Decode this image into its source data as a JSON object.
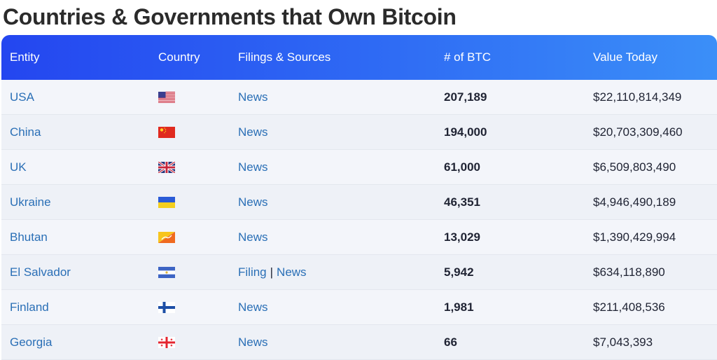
{
  "title": "Countries & Governments that Own Bitcoin",
  "table": {
    "headers": {
      "entity": "Entity",
      "country": "Country",
      "sources": "Filings & Sources",
      "btc": "# of BTC",
      "value": "Value Today"
    },
    "rows": [
      {
        "entity": "USA",
        "flag": "usa-flag-icon",
        "sources": [
          "News"
        ],
        "btc": "207,189",
        "value": "$22,110,814,349"
      },
      {
        "entity": "China",
        "flag": "china-flag-icon",
        "sources": [
          "News"
        ],
        "btc": "194,000",
        "value": "$20,703,309,460"
      },
      {
        "entity": "UK",
        "flag": "uk-flag-icon",
        "sources": [
          "News"
        ],
        "btc": "61,000",
        "value": "$6,509,803,490"
      },
      {
        "entity": "Ukraine",
        "flag": "ukraine-flag-icon",
        "sources": [
          "News"
        ],
        "btc": "46,351",
        "value": "$4,946,490,189"
      },
      {
        "entity": "Bhutan",
        "flag": "bhutan-flag-icon",
        "sources": [
          "News"
        ],
        "btc": "13,029",
        "value": "$1,390,429,994"
      },
      {
        "entity": "El Salvador",
        "flag": "el-salvador-flag-icon",
        "sources": [
          "Filing",
          "News"
        ],
        "separator": "|",
        "btc": "5,942",
        "value": "$634,118,890"
      },
      {
        "entity": "Finland",
        "flag": "finland-flag-icon",
        "sources": [
          "News"
        ],
        "btc": "1,981",
        "value": "$211,408,536"
      },
      {
        "entity": "Georgia",
        "flag": "georgia-flag-icon",
        "sources": [
          "News"
        ],
        "btc": "66",
        "value": "$7,043,393"
      }
    ]
  },
  "colors": {
    "header_gradient_start": "#2446f0",
    "header_gradient_end": "#3b8ff8",
    "link": "#2a6fb6",
    "text": "#1f2333"
  }
}
